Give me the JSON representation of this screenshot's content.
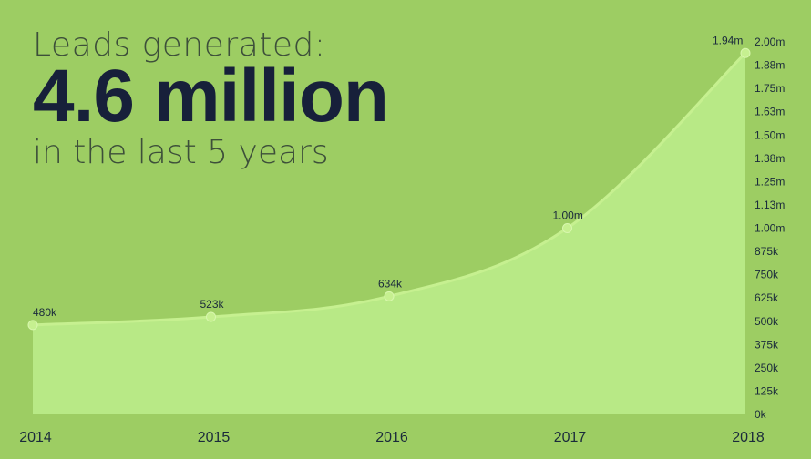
{
  "headline": {
    "line1": "Leads generated:",
    "big": "4.6 million",
    "line3": "in the last 5 years"
  },
  "colors": {
    "background": "#9dcd63",
    "area_fill": "#b8e986",
    "line": "#c6f090",
    "point": "#c6f090",
    "text": "#1a2a3b"
  },
  "chart_data": {
    "type": "area",
    "x": [
      "2014",
      "2015",
      "2016",
      "2017",
      "2018"
    ],
    "series": [
      {
        "values": [
          480000,
          523000,
          634000,
          1000000,
          1940000
        ],
        "labels": [
          "480k",
          "523k",
          "634k",
          "1.00m",
          "1.94m"
        ]
      }
    ],
    "ylim": [
      0,
      2000000
    ],
    "y_ticks": [
      {
        "value": 0,
        "label": "0k"
      },
      {
        "value": 125000,
        "label": "125k"
      },
      {
        "value": 250000,
        "label": "250k"
      },
      {
        "value": 375000,
        "label": "375k"
      },
      {
        "value": 500000,
        "label": "500k"
      },
      {
        "value": 625000,
        "label": "625k"
      },
      {
        "value": 750000,
        "label": "750k"
      },
      {
        "value": 875000,
        "label": "875k"
      },
      {
        "value": 1000000,
        "label": "1.00m"
      },
      {
        "value": 1125000,
        "label": "1.13m"
      },
      {
        "value": 1250000,
        "label": "1.25m"
      },
      {
        "value": 1375000,
        "label": "1.38m"
      },
      {
        "value": 1500000,
        "label": "1.50m"
      },
      {
        "value": 1625000,
        "label": "1.63m"
      },
      {
        "value": 1750000,
        "label": "1.75m"
      },
      {
        "value": 1875000,
        "label": "1.88m"
      },
      {
        "value": 2000000,
        "label": "2.00m"
      }
    ],
    "grid": false,
    "legend": "none",
    "y_axis_position": "right"
  }
}
